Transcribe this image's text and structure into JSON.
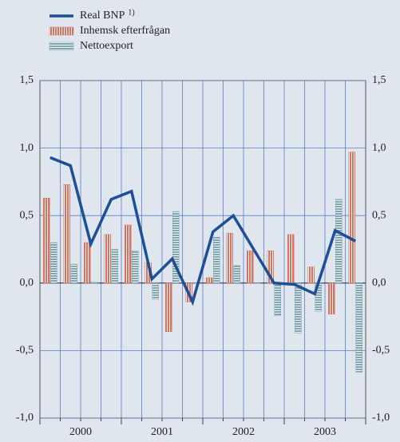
{
  "chart_data": {
    "type": "bar_line",
    "categories": [
      null,
      null,
      null,
      null,
      null,
      null,
      null,
      null,
      null,
      null,
      null,
      null,
      null,
      null,
      null,
      null
    ],
    "years": [
      "2000",
      "2001",
      "2002",
      "2003"
    ],
    "series": [
      {
        "name": "Real BNP",
        "type": "line",
        "color": "#1c4f97",
        "values": [
          0.93,
          0.87,
          0.29,
          0.62,
          0.68,
          0.03,
          0.18,
          -0.14,
          0.38,
          0.5,
          0.25,
          0.0,
          -0.01,
          -0.08,
          0.39,
          0.31
        ]
      },
      {
        "name": "Inhemsk efterfrågan",
        "type": "bar",
        "color": "#d8735f",
        "values": [
          0.63,
          0.73,
          0.3,
          0.36,
          0.43,
          0.15,
          -0.36,
          -0.14,
          0.04,
          0.37,
          0.24,
          0.24,
          0.36,
          0.12,
          -0.23,
          0.97
        ]
      },
      {
        "name": "Nettoexport",
        "type": "bar",
        "color": "#7fa6b2",
        "values": [
          0.3,
          0.14,
          0.01,
          0.25,
          0.24,
          -0.12,
          0.53,
          0.0,
          0.34,
          0.13,
          0.0,
          -0.24,
          -0.37,
          -0.21,
          0.62,
          -0.66
        ]
      }
    ],
    "legend_note": "1)",
    "ylim": [
      -1.0,
      1.5
    ],
    "yticks": [
      {
        "value": 1.5,
        "label": "1,5"
      },
      {
        "value": 1.0,
        "label": "1,0"
      },
      {
        "value": 0.5,
        "label": "0,5"
      },
      {
        "value": 0,
        "label": "0,0"
      },
      {
        "value": -0.5,
        "label": "-0,5"
      },
      {
        "value": -1.0,
        "label": "-1,0"
      }
    ],
    "grid": true,
    "legend": "top-left"
  }
}
